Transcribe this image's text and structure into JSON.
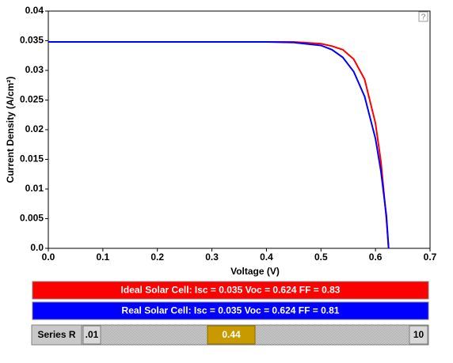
{
  "chart_data": {
    "type": "line",
    "xlabel": "Voltage (V)",
    "ylabel": "Current Density (A/cm²)",
    "x": [
      0,
      0.1,
      0.2,
      0.3,
      0.4,
      0.45,
      0.5,
      0.52,
      0.54,
      0.56,
      0.58,
      0.6,
      0.61,
      0.62,
      0.624
    ],
    "series": [
      {
        "name": "Ideal Solar Cell:  Isc = 0.035  Voc = 0.624  FF = 0.83",
        "color": "#ff0000",
        "values": [
          0.0348,
          0.0348,
          0.0348,
          0.0348,
          0.0348,
          0.0348,
          0.0345,
          0.0341,
          0.0335,
          0.0319,
          0.0285,
          0.0211,
          0.0146,
          0.005,
          0
        ]
      },
      {
        "name": "Real Solar Cell:  Isc = 0.035  Voc = 0.624  FF = 0.81",
        "color": "#0000ff",
        "values": [
          0.0348,
          0.0348,
          0.0348,
          0.0348,
          0.0348,
          0.0347,
          0.0342,
          0.0335,
          0.0322,
          0.0298,
          0.0256,
          0.0185,
          0.013,
          0.0055,
          0
        ]
      }
    ],
    "xlim": [
      0,
      0.7
    ],
    "xticks": [
      {
        "value": 0,
        "label": "0.0"
      },
      0.1,
      0.2,
      0.3,
      0.4,
      0.5,
      0.6,
      0.7
    ],
    "ylim": [
      0,
      0.04
    ],
    "yticks": [
      {
        "value": 0,
        "label": "0.0"
      },
      0.005,
      0.01,
      0.015,
      0.02,
      0.025,
      0.03,
      0.035,
      0.04
    ]
  },
  "help": "?",
  "slider": {
    "label": "Series R",
    "min_label": ".01",
    "max_label": "10",
    "value_label": "0.44"
  }
}
